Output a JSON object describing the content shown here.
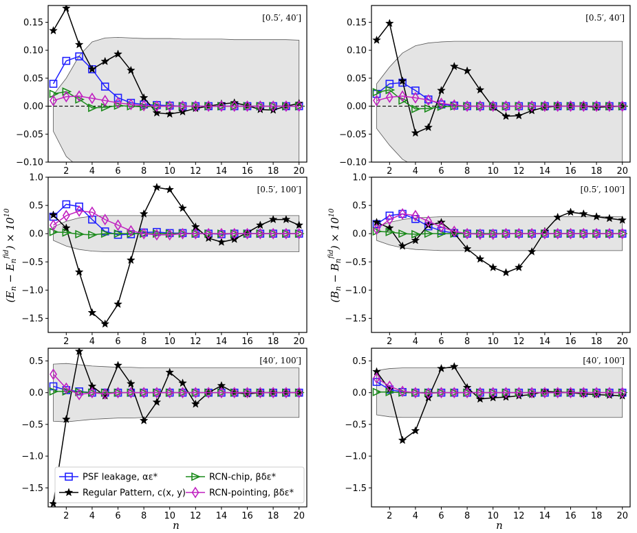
{
  "figure": {
    "ylabel_left": "(E_n − E_n^fid) × 10^10",
    "ylabel_right": "(B_n − B_n^fid) × 10^10",
    "xlabel": "n"
  },
  "legend": [
    {
      "key": "psf",
      "label": "PSF leakage, αε*"
    },
    {
      "key": "rp",
      "label": "Regular Pattern, c(x, y)"
    },
    {
      "key": "chip",
      "label": "RCN-chip, βδε*"
    },
    {
      "key": "point",
      "label": "RCN-pointing, βδε*"
    }
  ],
  "colors": {
    "psf": "#1f1fff",
    "rp": "#000000",
    "chip": "#1a8a1a",
    "point": "#c020c0",
    "band_fill": "#e4e4e4",
    "band_edge": "#555555"
  },
  "chart_data": [
    {
      "type": "line",
      "panel": "E-top",
      "range_label": "[0.5′, 40′]",
      "ylim": [
        -0.1,
        0.18
      ],
      "yticks": [
        -0.1,
        -0.05,
        0.0,
        0.05,
        0.1,
        0.15
      ],
      "xlim": [
        0.6,
        20.6
      ],
      "xticks": [
        2,
        4,
        6,
        8,
        10,
        12,
        14,
        16,
        18,
        20
      ],
      "zero_line": true,
      "band_upper": [
        0.02,
        0.05,
        0.09,
        0.115,
        0.122,
        0.123,
        0.122,
        0.121,
        0.121,
        0.121,
        0.12,
        0.12,
        0.12,
        0.12,
        0.119,
        0.119,
        0.119,
        0.119,
        0.119,
        0.118
      ],
      "band_lower": [
        -0.045,
        -0.09,
        -0.11,
        -0.118,
        -0.12,
        -0.121,
        -0.121,
        -0.121,
        -0.121,
        -0.121,
        -0.121,
        -0.121,
        -0.121,
        -0.121,
        -0.121,
        -0.121,
        -0.121,
        -0.121,
        -0.121,
        -0.121
      ],
      "series": [
        {
          "key": "psf",
          "values": [
            0.04,
            0.081,
            0.089,
            0.066,
            0.035,
            0.015,
            0.006,
            0.003,
            0.002,
            0.001,
            0,
            0,
            0,
            0,
            0,
            0,
            0,
            0,
            0,
            0
          ]
        },
        {
          "key": "rp",
          "values": [
            0.135,
            0.175,
            0.11,
            0.066,
            0.08,
            0.093,
            0.064,
            0.015,
            -0.012,
            -0.014,
            -0.01,
            -0.004,
            0.0,
            0.004,
            0.006,
            0.001,
            -0.006,
            -0.007,
            0.0,
            0.005
          ]
        },
        {
          "key": "chip",
          "values": [
            0.022,
            0.026,
            0.012,
            -0.003,
            -0.002,
            0.001,
            0.0,
            -0.001,
            0,
            0,
            0,
            0,
            0,
            0,
            0,
            0,
            0,
            0,
            0,
            0
          ]
        },
        {
          "key": "point",
          "values": [
            0.01,
            0.017,
            0.018,
            0.014,
            0.01,
            0.006,
            0.003,
            0.001,
            0,
            0,
            0,
            0,
            0,
            0,
            0,
            0,
            0,
            0,
            0,
            0
          ]
        }
      ]
    },
    {
      "type": "line",
      "panel": "B-top",
      "range_label": "[0.5′, 40′]",
      "ylim": [
        -0.1,
        0.18
      ],
      "yticks": [
        -0.1,
        -0.05,
        0.0,
        0.05,
        0.1,
        0.15
      ],
      "xlim": [
        0.6,
        20.6
      ],
      "xticks": [
        2,
        4,
        6,
        8,
        10,
        12,
        14,
        16,
        18,
        20
      ],
      "zero_line": true,
      "band_upper": [
        0.04,
        0.07,
        0.095,
        0.108,
        0.113,
        0.115,
        0.116,
        0.116,
        0.116,
        0.116,
        0.116,
        0.116,
        0.116,
        0.116,
        0.116,
        0.116,
        0.116,
        0.116,
        0.116,
        0.116
      ],
      "band_lower": [
        -0.04,
        -0.07,
        -0.095,
        -0.108,
        -0.113,
        -0.115,
        -0.116,
        -0.116,
        -0.116,
        -0.116,
        -0.116,
        -0.116,
        -0.116,
        -0.116,
        -0.116,
        -0.116,
        -0.116,
        -0.116,
        -0.116,
        -0.116
      ],
      "series": [
        {
          "key": "psf",
          "values": [
            0.022,
            0.04,
            0.042,
            0.028,
            0.012,
            0.003,
            0.001,
            0,
            0,
            0,
            0,
            0,
            0,
            0,
            0,
            0,
            0,
            0,
            0,
            0
          ]
        },
        {
          "key": "rp",
          "values": [
            0.118,
            0.148,
            0.045,
            -0.048,
            -0.038,
            0.028,
            0.071,
            0.063,
            0.029,
            -0.002,
            -0.018,
            -0.017,
            -0.008,
            -0.002,
            0.0,
            0.0,
            0.0,
            -0.002,
            -0.001,
            0.0
          ]
        },
        {
          "key": "chip",
          "values": [
            0.025,
            0.029,
            0.01,
            -0.005,
            -0.004,
            -0.001,
            0.0,
            0,
            0,
            0,
            0,
            0,
            0,
            0,
            0,
            0,
            0,
            0,
            0,
            0
          ]
        },
        {
          "key": "point",
          "values": [
            0.01,
            0.016,
            0.018,
            0.015,
            0.011,
            0.005,
            0.002,
            0,
            0,
            0,
            0,
            0,
            0,
            0,
            0,
            0,
            0,
            0,
            0,
            0
          ]
        }
      ]
    },
    {
      "type": "line",
      "panel": "E-mid",
      "range_label": "[0.5′, 100′]",
      "ylim": [
        -1.75,
        1.0
      ],
      "yticks": [
        -1.5,
        -1.0,
        -0.5,
        0.0,
        0.5,
        1.0
      ],
      "xlim": [
        0.6,
        20.6
      ],
      "xticks": [
        2,
        4,
        6,
        8,
        10,
        12,
        14,
        16,
        18,
        20
      ],
      "zero_line": false,
      "band_upper": [
        0.12,
        0.22,
        0.28,
        0.31,
        0.32,
        0.32,
        0.32,
        0.32,
        0.32,
        0.32,
        0.32,
        0.32,
        0.32,
        0.32,
        0.32,
        0.32,
        0.32,
        0.32,
        0.32,
        0.32
      ],
      "band_lower": [
        -0.12,
        -0.22,
        -0.28,
        -0.31,
        -0.32,
        -0.32,
        -0.32,
        -0.32,
        -0.32,
        -0.32,
        -0.32,
        -0.32,
        -0.32,
        -0.32,
        -0.32,
        -0.32,
        -0.32,
        -0.32,
        -0.32,
        -0.32
      ],
      "series": [
        {
          "key": "psf",
          "values": [
            0.3,
            0.52,
            0.48,
            0.25,
            0.04,
            -0.02,
            -0.01,
            0.02,
            0.03,
            0.01,
            0.01,
            0.0,
            0.0,
            -0.01,
            0.0,
            0.0,
            0.0,
            0.0,
            0.0,
            0.0
          ]
        },
        {
          "key": "rp",
          "values": [
            0.33,
            0.1,
            -0.68,
            -1.4,
            -1.6,
            -1.25,
            -0.47,
            0.35,
            0.82,
            0.78,
            0.45,
            0.12,
            -0.08,
            -0.15,
            -0.1,
            0.02,
            0.15,
            0.25,
            0.25,
            0.15
          ]
        },
        {
          "key": "chip",
          "values": [
            0.03,
            0.02,
            -0.01,
            -0.02,
            0.0,
            0.0,
            0.0,
            0.0,
            0,
            0,
            0,
            0,
            0,
            0,
            0,
            0,
            0,
            0,
            0,
            0
          ]
        },
        {
          "key": "point",
          "values": [
            0.15,
            0.32,
            0.4,
            0.38,
            0.25,
            0.15,
            0.05,
            0.0,
            -0.02,
            -0.02,
            0.0,
            0,
            0,
            0,
            0,
            0,
            0,
            0,
            0,
            0
          ]
        }
      ]
    },
    {
      "type": "line",
      "panel": "B-mid",
      "range_label": "[0.5′, 100′]",
      "ylim": [
        -1.75,
        1.0
      ],
      "yticks": [
        -1.5,
        -1.0,
        -0.5,
        0.0,
        0.5,
        1.0
      ],
      "xlim": [
        0.6,
        20.6
      ],
      "xticks": [
        2,
        4,
        6,
        8,
        10,
        12,
        14,
        16,
        18,
        20
      ],
      "zero_line": false,
      "band_upper": [
        0.12,
        0.2,
        0.25,
        0.28,
        0.29,
        0.3,
        0.3,
        0.3,
        0.3,
        0.3,
        0.3,
        0.3,
        0.3,
        0.3,
        0.3,
        0.3,
        0.3,
        0.3,
        0.3,
        0.3
      ],
      "band_lower": [
        -0.12,
        -0.2,
        -0.25,
        -0.28,
        -0.29,
        -0.3,
        -0.3,
        -0.3,
        -0.3,
        -0.3,
        -0.3,
        -0.3,
        -0.3,
        -0.3,
        -0.3,
        -0.3,
        -0.3,
        -0.3,
        -0.3,
        -0.3
      ],
      "series": [
        {
          "key": "psf",
          "values": [
            0.17,
            0.32,
            0.35,
            0.26,
            0.13,
            0.05,
            0.01,
            0.0,
            0.0,
            0,
            0,
            0,
            0,
            0,
            0,
            0,
            0,
            0,
            0,
            0
          ]
        },
        {
          "key": "rp",
          "values": [
            0.2,
            0.1,
            -0.22,
            -0.12,
            0.15,
            0.2,
            0.01,
            -0.27,
            -0.45,
            -0.6,
            -0.69,
            -0.6,
            -0.32,
            0.04,
            0.29,
            0.38,
            0.35,
            0.3,
            0.27,
            0.24
          ]
        },
        {
          "key": "chip",
          "values": [
            0.04,
            0.03,
            0.0,
            -0.01,
            0.0,
            0.0,
            0,
            0,
            0,
            0,
            0,
            0,
            0,
            0,
            0,
            0,
            0,
            0,
            0,
            0
          ]
        },
        {
          "key": "point",
          "values": [
            0.08,
            0.25,
            0.35,
            0.32,
            0.22,
            0.12,
            0.04,
            0.0,
            -0.01,
            -0.01,
            0,
            0,
            0,
            0,
            0,
            0,
            0,
            0,
            0,
            0
          ]
        }
      ]
    },
    {
      "type": "line",
      "panel": "E-bot",
      "range_label": "[40′, 100′]",
      "ylim": [
        -1.8,
        0.7
      ],
      "yticks": [
        -1.5,
        -1.0,
        -0.5,
        0.0,
        0.5
      ],
      "xlim": [
        0.6,
        20.6
      ],
      "xticks": [
        2,
        4,
        6,
        8,
        10,
        12,
        14,
        16,
        18,
        20
      ],
      "zero_line": false,
      "band_upper": [
        0.45,
        0.46,
        0.44,
        0.42,
        0.41,
        0.4,
        0.4,
        0.39,
        0.39,
        0.39,
        0.39,
        0.39,
        0.39,
        0.39,
        0.39,
        0.39,
        0.39,
        0.39,
        0.39,
        0.39
      ],
      "band_lower": [
        -0.45,
        -0.46,
        -0.44,
        -0.42,
        -0.41,
        -0.4,
        -0.4,
        -0.39,
        -0.39,
        -0.39,
        -0.39,
        -0.39,
        -0.39,
        -0.39,
        -0.39,
        -0.39,
        -0.39,
        -0.39,
        -0.39,
        -0.39
      ],
      "series": [
        {
          "key": "psf",
          "values": [
            0.1,
            0.04,
            0.02,
            0.0,
            0.0,
            0.0,
            0,
            0,
            0,
            0,
            0,
            0,
            0,
            0,
            0,
            0,
            0,
            0,
            0,
            0
          ]
        },
        {
          "key": "rp",
          "values": [
            -1.75,
            -0.42,
            0.65,
            0.1,
            -0.05,
            0.43,
            0.14,
            -0.44,
            -0.15,
            0.32,
            0.15,
            -0.18,
            0.0,
            0.11,
            0.0,
            -0.02,
            0.0,
            0.0,
            0.0,
            0.0
          ]
        },
        {
          "key": "chip",
          "values": [
            0.02,
            0.02,
            0.01,
            0.0,
            0.0,
            0,
            0,
            0,
            0,
            0,
            0,
            0,
            0,
            0,
            0,
            0,
            0,
            0,
            0,
            0
          ]
        },
        {
          "key": "point",
          "values": [
            0.29,
            0.07,
            -0.03,
            0.0,
            -0.02,
            0.0,
            0,
            0,
            0,
            0,
            0,
            0,
            0,
            0,
            0,
            0,
            0,
            0,
            0,
            0
          ]
        }
      ]
    },
    {
      "type": "line",
      "panel": "B-bot",
      "range_label": "[40′, 100′]",
      "ylim": [
        -1.8,
        0.7
      ],
      "yticks": [
        -1.5,
        -1.0,
        -0.5,
        0.0,
        0.5
      ],
      "xlim": [
        0.6,
        20.6
      ],
      "xticks": [
        2,
        4,
        6,
        8,
        10,
        12,
        14,
        16,
        18,
        20
      ],
      "zero_line": false,
      "band_upper": [
        0.35,
        0.38,
        0.39,
        0.39,
        0.39,
        0.39,
        0.39,
        0.39,
        0.39,
        0.39,
        0.39,
        0.39,
        0.39,
        0.39,
        0.39,
        0.39,
        0.39,
        0.39,
        0.39,
        0.39
      ],
      "band_lower": [
        -0.35,
        -0.38,
        -0.39,
        -0.39,
        -0.39,
        -0.39,
        -0.39,
        -0.39,
        -0.39,
        -0.39,
        -0.39,
        -0.39,
        -0.39,
        -0.39,
        -0.39,
        -0.39,
        -0.39,
        -0.39,
        -0.39,
        -0.39
      ],
      "series": [
        {
          "key": "psf",
          "values": [
            0.17,
            0.05,
            0.01,
            0.0,
            0,
            0,
            0,
            0,
            0,
            0,
            0,
            0,
            0,
            0,
            0,
            0,
            0,
            0,
            0,
            0
          ]
        },
        {
          "key": "rp",
          "values": [
            0.33,
            0.05,
            -0.75,
            -0.6,
            -0.08,
            0.38,
            0.41,
            0.08,
            -0.1,
            -0.08,
            -0.07,
            -0.05,
            -0.03,
            0.02,
            0.01,
            0.0,
            -0.02,
            -0.03,
            -0.04,
            -0.05
          ]
        },
        {
          "key": "chip",
          "values": [
            0.01,
            0.01,
            0.0,
            0.0,
            0,
            0,
            0,
            0,
            0,
            0,
            0,
            0,
            0,
            0,
            0,
            0,
            0,
            0,
            0,
            0
          ]
        },
        {
          "key": "point",
          "values": [
            0.23,
            0.1,
            0.02,
            0.0,
            -0.01,
            0,
            0,
            0,
            0,
            0,
            0,
            0,
            0,
            0,
            0,
            0,
            0,
            0,
            0,
            0
          ]
        }
      ]
    }
  ]
}
